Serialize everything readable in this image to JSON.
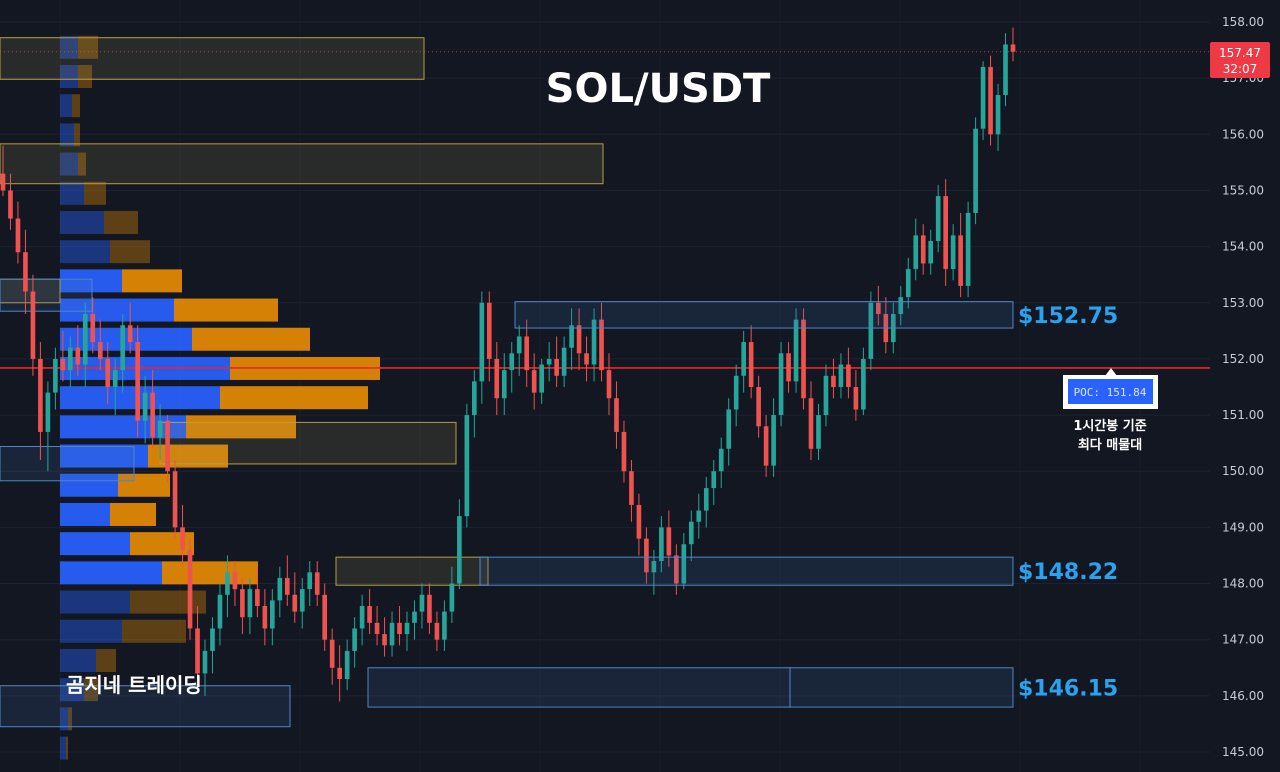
{
  "chart_data": {
    "type": "candlestick",
    "title": "SOL/USDT",
    "ylim": [
      144.7,
      158.3
    ],
    "y_ticks": [
      "145.00",
      "146.00",
      "147.00",
      "148.00",
      "149.00",
      "150.00",
      "151.00",
      "152.00",
      "153.00",
      "154.00",
      "155.00",
      "156.00",
      "157.00",
      "158.00"
    ],
    "current_price": "157.47",
    "countdown": "32:07",
    "poc": {
      "price": 151.84,
      "label": "POC: 151.84",
      "note_line1": "1시간봉 기준",
      "note_line2": "최다 매물대"
    },
    "levels": [
      {
        "label": "$152.75",
        "low": 152.55,
        "high": 153.02
      },
      {
        "label": "$148.22",
        "low": 147.97,
        "high": 148.47
      },
      {
        "label": "$146.15",
        "low": 145.8,
        "high": 146.5
      }
    ],
    "candles": [
      [
        155.3,
        155.8,
        154.9,
        155.0
      ],
      [
        155.0,
        155.3,
        154.3,
        154.5
      ],
      [
        154.5,
        154.8,
        153.7,
        153.9
      ],
      [
        153.9,
        154.3,
        152.8,
        153.2
      ],
      [
        153.2,
        153.5,
        151.7,
        152.0
      ],
      [
        152.0,
        152.3,
        150.2,
        150.7
      ],
      [
        150.7,
        151.6,
        150.0,
        151.4
      ],
      [
        151.4,
        152.2,
        151.1,
        152.0
      ],
      [
        152.0,
        152.5,
        151.6,
        151.8
      ],
      [
        151.8,
        152.4,
        151.5,
        152.2
      ],
      [
        152.2,
        152.6,
        151.7,
        151.9
      ],
      [
        151.9,
        153.0,
        151.5,
        152.8
      ],
      [
        152.8,
        153.1,
        152.1,
        152.3
      ],
      [
        152.3,
        152.7,
        151.8,
        152.0
      ],
      [
        152.0,
        152.3,
        151.2,
        151.5
      ],
      [
        151.5,
        152.0,
        151.0,
        151.8
      ],
      [
        151.8,
        152.8,
        151.4,
        152.6
      ],
      [
        152.6,
        153.0,
        152.1,
        152.3
      ],
      [
        152.3,
        152.6,
        150.6,
        150.9
      ],
      [
        150.9,
        151.7,
        150.5,
        151.4
      ],
      [
        151.4,
        151.8,
        150.4,
        150.6
      ],
      [
        150.6,
        151.2,
        150.2,
        150.9
      ],
      [
        150.9,
        151.0,
        149.8,
        150.0
      ],
      [
        150.0,
        150.2,
        148.8,
        149.0
      ],
      [
        149.0,
        149.4,
        148.3,
        148.6
      ],
      [
        148.6,
        148.8,
        147.0,
        147.2
      ],
      [
        147.2,
        147.6,
        146.1,
        146.4
      ],
      [
        146.4,
        147.0,
        146.0,
        146.8
      ],
      [
        146.8,
        147.4,
        146.4,
        147.2
      ],
      [
        147.2,
        148.0,
        146.9,
        147.8
      ],
      [
        147.8,
        148.5,
        147.4,
        148.2
      ],
      [
        148.2,
        148.4,
        147.6,
        147.9
      ],
      [
        147.9,
        148.1,
        147.1,
        147.4
      ],
      [
        147.4,
        148.1,
        147.1,
        147.9
      ],
      [
        147.9,
        148.3,
        147.4,
        147.6
      ],
      [
        147.6,
        147.9,
        146.9,
        147.2
      ],
      [
        147.2,
        147.9,
        146.9,
        147.7
      ],
      [
        147.7,
        148.3,
        147.4,
        148.1
      ],
      [
        148.1,
        148.5,
        147.6,
        147.8
      ],
      [
        147.8,
        148.2,
        147.3,
        147.5
      ],
      [
        147.5,
        148.1,
        147.2,
        147.9
      ],
      [
        147.9,
        148.4,
        147.6,
        148.2
      ],
      [
        148.2,
        148.4,
        147.6,
        147.8
      ],
      [
        147.8,
        148.0,
        146.8,
        147.0
      ],
      [
        147.0,
        147.2,
        146.2,
        146.5
      ],
      [
        146.5,
        146.9,
        145.9,
        146.3
      ],
      [
        146.3,
        147.0,
        146.1,
        146.8
      ],
      [
        146.8,
        147.4,
        146.5,
        147.2
      ],
      [
        147.2,
        147.8,
        146.9,
        147.6
      ],
      [
        147.6,
        147.9,
        147.1,
        147.3
      ],
      [
        147.3,
        147.6,
        146.9,
        147.1
      ],
      [
        147.1,
        147.4,
        146.7,
        146.9
      ],
      [
        146.9,
        147.5,
        146.7,
        147.3
      ],
      [
        147.3,
        147.6,
        146.9,
        147.1
      ],
      [
        147.1,
        147.5,
        146.8,
        147.3
      ],
      [
        147.3,
        147.7,
        147.0,
        147.5
      ],
      [
        147.5,
        148.0,
        147.2,
        147.8
      ],
      [
        147.8,
        148.0,
        147.1,
        147.3
      ],
      [
        147.3,
        147.5,
        146.8,
        147.0
      ],
      [
        147.0,
        147.7,
        146.8,
        147.5
      ],
      [
        147.5,
        148.3,
        147.3,
        148.0
      ],
      [
        148.0,
        149.5,
        147.9,
        149.2
      ],
      [
        149.2,
        151.2,
        149.0,
        151.0
      ],
      [
        151.0,
        151.8,
        150.6,
        151.6
      ],
      [
        151.6,
        153.2,
        151.2,
        153.0
      ],
      [
        153.0,
        153.2,
        151.6,
        152.0
      ],
      [
        152.0,
        152.3,
        151.0,
        151.3
      ],
      [
        151.3,
        152.1,
        151.0,
        151.8
      ],
      [
        151.8,
        152.3,
        151.4,
        152.1
      ],
      [
        152.1,
        152.6,
        151.7,
        152.4
      ],
      [
        152.4,
        152.7,
        151.5,
        151.8
      ],
      [
        151.8,
        152.1,
        151.1,
        151.4
      ],
      [
        151.4,
        152.0,
        151.2,
        151.9
      ],
      [
        151.9,
        152.3,
        151.6,
        152.0
      ],
      [
        152.0,
        152.4,
        151.5,
        151.7
      ],
      [
        151.7,
        152.4,
        151.5,
        152.2
      ],
      [
        152.2,
        152.9,
        151.8,
        152.6
      ],
      [
        152.6,
        152.9,
        151.8,
        152.1
      ],
      [
        152.1,
        152.4,
        151.6,
        151.9
      ],
      [
        151.9,
        152.9,
        151.6,
        152.7
      ],
      [
        152.7,
        153.0,
        151.6,
        151.8
      ],
      [
        151.8,
        152.1,
        151.0,
        151.3
      ],
      [
        151.3,
        151.6,
        150.4,
        150.7
      ],
      [
        150.7,
        150.9,
        149.8,
        150.0
      ],
      [
        150.0,
        150.2,
        149.1,
        149.4
      ],
      [
        149.4,
        149.6,
        148.5,
        148.8
      ],
      [
        148.8,
        149.0,
        148.0,
        148.2
      ],
      [
        148.2,
        148.6,
        147.8,
        148.4
      ],
      [
        148.4,
        149.2,
        148.2,
        149.0
      ],
      [
        149.0,
        149.3,
        148.3,
        148.5
      ],
      [
        148.5,
        148.7,
        147.8,
        148.0
      ],
      [
        148.0,
        148.9,
        147.9,
        148.7
      ],
      [
        148.7,
        149.3,
        148.4,
        149.1
      ],
      [
        149.1,
        149.6,
        148.8,
        149.3
      ],
      [
        149.3,
        149.9,
        149.0,
        149.7
      ],
      [
        149.7,
        150.2,
        149.4,
        150.0
      ],
      [
        150.0,
        150.6,
        149.7,
        150.4
      ],
      [
        150.4,
        151.3,
        150.1,
        151.1
      ],
      [
        151.1,
        151.9,
        150.8,
        151.7
      ],
      [
        151.7,
        152.5,
        151.4,
        152.3
      ],
      [
        152.3,
        152.6,
        151.3,
        151.5
      ],
      [
        151.5,
        151.7,
        150.6,
        150.8
      ],
      [
        150.8,
        151.0,
        149.9,
        150.1
      ],
      [
        150.1,
        151.3,
        149.9,
        151.0
      ],
      [
        151.0,
        152.3,
        150.8,
        152.1
      ],
      [
        152.1,
        152.3,
        151.4,
        151.6
      ],
      [
        151.6,
        152.9,
        151.4,
        152.7
      ],
      [
        152.7,
        152.9,
        151.1,
        151.3
      ],
      [
        151.3,
        151.6,
        150.2,
        150.4
      ],
      [
        150.4,
        151.2,
        150.2,
        151.0
      ],
      [
        151.0,
        151.9,
        150.8,
        151.7
      ],
      [
        151.7,
        152.0,
        151.3,
        151.5
      ],
      [
        151.5,
        152.1,
        151.3,
        151.9
      ],
      [
        151.9,
        152.2,
        151.3,
        151.5
      ],
      [
        151.5,
        151.8,
        150.9,
        151.1
      ],
      [
        151.1,
        152.2,
        151.0,
        152.0
      ],
      [
        152.0,
        153.2,
        151.8,
        153.0
      ],
      [
        153.0,
        153.3,
        152.6,
        152.8
      ],
      [
        152.8,
        153.1,
        152.1,
        152.3
      ],
      [
        152.3,
        153.0,
        152.1,
        152.8
      ],
      [
        152.8,
        153.3,
        152.6,
        153.1
      ],
      [
        153.1,
        153.8,
        152.9,
        153.6
      ],
      [
        153.6,
        154.5,
        153.4,
        154.2
      ],
      [
        154.2,
        154.4,
        153.5,
        153.7
      ],
      [
        153.7,
        154.3,
        153.5,
        154.1
      ],
      [
        154.1,
        155.1,
        153.9,
        154.9
      ],
      [
        154.9,
        155.2,
        153.3,
        153.6
      ],
      [
        153.6,
        154.4,
        153.4,
        154.2
      ],
      [
        154.2,
        154.6,
        153.1,
        153.3
      ],
      [
        153.3,
        154.8,
        153.1,
        154.6
      ],
      [
        154.6,
        156.3,
        154.4,
        156.1
      ],
      [
        156.1,
        157.3,
        155.9,
        157.2
      ],
      [
        157.2,
        157.4,
        155.8,
        156.0
      ],
      [
        156.0,
        156.9,
        155.7,
        156.7
      ],
      [
        156.7,
        157.8,
        156.5,
        157.6
      ],
      [
        157.6,
        157.9,
        157.3,
        157.47
      ]
    ],
    "volume_profile": [
      {
        "price": 157.55,
        "buy": 18,
        "sell": 20,
        "muted": true
      },
      {
        "price": 157.03,
        "buy": 18,
        "sell": 14,
        "muted": true
      },
      {
        "price": 156.51,
        "buy": 12,
        "sell": 8,
        "muted": true
      },
      {
        "price": 155.99,
        "buy": 14,
        "sell": 6,
        "muted": true
      },
      {
        "price": 155.47,
        "buy": 18,
        "sell": 8,
        "muted": true
      },
      {
        "price": 154.95,
        "buy": 24,
        "sell": 22,
        "muted": true
      },
      {
        "price": 154.43,
        "buy": 44,
        "sell": 34,
        "muted": true
      },
      {
        "price": 153.91,
        "buy": 50,
        "sell": 40,
        "muted": true
      },
      {
        "price": 153.39,
        "buy": 62,
        "sell": 60,
        "muted": false
      },
      {
        "price": 152.87,
        "buy": 114,
        "sell": 104,
        "muted": false
      },
      {
        "price": 152.35,
        "buy": 132,
        "sell": 118,
        "muted": false
      },
      {
        "price": 151.83,
        "buy": 170,
        "sell": 150,
        "muted": false
      },
      {
        "price": 151.31,
        "buy": 160,
        "sell": 148,
        "muted": false
      },
      {
        "price": 150.79,
        "buy": 126,
        "sell": 110,
        "muted": false
      },
      {
        "price": 150.27,
        "buy": 88,
        "sell": 80,
        "muted": false
      },
      {
        "price": 149.75,
        "buy": 58,
        "sell": 52,
        "muted": false
      },
      {
        "price": 149.23,
        "buy": 50,
        "sell": 46,
        "muted": false
      },
      {
        "price": 148.71,
        "buy": 70,
        "sell": 64,
        "muted": false
      },
      {
        "price": 148.19,
        "buy": 102,
        "sell": 96,
        "muted": false
      },
      {
        "price": 147.67,
        "buy": 70,
        "sell": 76,
        "muted": true
      },
      {
        "price": 147.15,
        "buy": 62,
        "sell": 64,
        "muted": true
      },
      {
        "price": 146.63,
        "buy": 36,
        "sell": 20,
        "muted": true
      },
      {
        "price": 146.11,
        "buy": 24,
        "sell": 14,
        "muted": true
      },
      {
        "price": 145.59,
        "buy": 8,
        "sell": 4,
        "muted": true
      },
      {
        "price": 145.07,
        "buy": 6,
        "sell": 2,
        "muted": true
      }
    ],
    "zones": [
      {
        "kind": "supply",
        "x0": 0,
        "x1": 424,
        "low": 156.98,
        "high": 157.72
      },
      {
        "kind": "supply",
        "x0": 0,
        "x1": 603,
        "low": 155.12,
        "high": 155.83
      },
      {
        "kind": "supply",
        "x0": 0,
        "x1": 60,
        "low": 153.0,
        "high": 153.42
      },
      {
        "kind": "supply",
        "x0": 160,
        "x1": 456,
        "low": 150.13,
        "high": 150.87
      },
      {
        "kind": "supply",
        "x0": 336,
        "x1": 488,
        "low": 147.97,
        "high": 148.47
      },
      {
        "kind": "demand",
        "x0": 0,
        "x1": 92,
        "low": 152.85,
        "high": 153.42
      },
      {
        "kind": "demand",
        "x0": 0,
        "x1": 134,
        "low": 149.83,
        "high": 150.44
      },
      {
        "kind": "demand",
        "x0": 0,
        "x1": 290,
        "low": 145.45,
        "high": 146.18
      },
      {
        "kind": "demand",
        "x0": 368,
        "x1": 790,
        "low": 145.8,
        "high": 146.5
      }
    ],
    "colors": {
      "up": "#26a69a",
      "down": "#ef5350",
      "poc_line": "#e5282e",
      "buy": "#2962ff",
      "sell": "#ff9800",
      "level_label": "#29a3f0"
    }
  },
  "watermark": "곰지네 트레이딩"
}
